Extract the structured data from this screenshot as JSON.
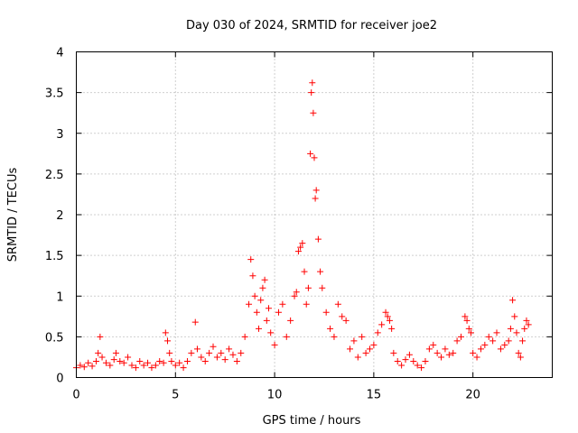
{
  "chart_data": {
    "type": "scatter",
    "title": "Day 030 of 2024, SRMTID for receiver joe2",
    "xlabel": "GPS time / hours",
    "ylabel": "SRMTID / TECUs",
    "xlim": [
      0,
      24
    ],
    "ylim": [
      0,
      4
    ],
    "xticks": [
      0,
      5,
      10,
      15,
      20
    ],
    "yticks": [
      0,
      0.5,
      1,
      1.5,
      2,
      2.5,
      3,
      3.5,
      4
    ],
    "grid": true,
    "marker": "+",
    "color": "#ff0000",
    "series": [
      {
        "name": "joe2",
        "x": [
          0.0,
          0.2,
          0.4,
          0.6,
          0.8,
          1.0,
          1.1,
          1.2,
          1.3,
          1.5,
          1.7,
          1.9,
          2.0,
          2.2,
          2.4,
          2.6,
          2.8,
          3.0,
          3.2,
          3.4,
          3.6,
          3.8,
          4.0,
          4.2,
          4.4,
          4.5,
          4.6,
          4.7,
          4.8,
          5.0,
          5.2,
          5.4,
          5.6,
          5.8,
          6.0,
          6.1,
          6.3,
          6.5,
          6.7,
          6.9,
          7.1,
          7.3,
          7.5,
          7.7,
          7.9,
          8.1,
          8.3,
          8.5,
          8.7,
          8.8,
          8.9,
          9.0,
          9.1,
          9.2,
          9.3,
          9.4,
          9.5,
          9.6,
          9.7,
          9.8,
          10.0,
          10.2,
          10.4,
          10.6,
          10.8,
          11.0,
          11.1,
          11.2,
          11.3,
          11.4,
          11.5,
          11.6,
          11.7,
          11.8,
          11.85,
          11.9,
          11.95,
          12.0,
          12.05,
          12.1,
          12.2,
          12.3,
          12.4,
          12.6,
          12.8,
          13.0,
          13.2,
          13.4,
          13.6,
          13.8,
          14.0,
          14.2,
          14.4,
          14.6,
          14.8,
          15.0,
          15.2,
          15.4,
          15.6,
          15.7,
          15.8,
          15.9,
          16.0,
          16.2,
          16.4,
          16.6,
          16.8,
          17.0,
          17.2,
          17.4,
          17.6,
          17.8,
          18.0,
          18.2,
          18.4,
          18.6,
          18.8,
          19.0,
          19.2,
          19.4,
          19.6,
          19.7,
          19.8,
          19.9,
          20.0,
          20.2,
          20.4,
          20.6,
          20.8,
          21.0,
          21.2,
          21.4,
          21.6,
          21.8,
          21.9,
          22.0,
          22.1,
          22.2,
          22.3,
          22.4,
          22.5,
          22.6,
          22.7,
          22.8
        ],
        "y": [
          0.12,
          0.15,
          0.13,
          0.18,
          0.14,
          0.2,
          0.3,
          0.5,
          0.25,
          0.18,
          0.15,
          0.22,
          0.3,
          0.2,
          0.18,
          0.25,
          0.15,
          0.12,
          0.2,
          0.15,
          0.18,
          0.12,
          0.15,
          0.2,
          0.18,
          0.55,
          0.45,
          0.3,
          0.2,
          0.15,
          0.18,
          0.12,
          0.2,
          0.3,
          0.68,
          0.35,
          0.25,
          0.2,
          0.3,
          0.38,
          0.25,
          0.3,
          0.22,
          0.35,
          0.28,
          0.2,
          0.3,
          0.5,
          0.9,
          1.45,
          1.25,
          1.0,
          0.8,
          0.6,
          0.95,
          1.1,
          1.2,
          0.7,
          0.85,
          0.55,
          0.4,
          0.8,
          0.9,
          0.5,
          0.7,
          1.0,
          1.05,
          1.55,
          1.6,
          1.65,
          1.3,
          0.9,
          1.1,
          2.75,
          3.5,
          3.62,
          3.25,
          2.7,
          2.2,
          2.3,
          1.7,
          1.3,
          1.1,
          0.8,
          0.6,
          0.5,
          0.9,
          0.75,
          0.7,
          0.35,
          0.45,
          0.25,
          0.5,
          0.3,
          0.35,
          0.4,
          0.55,
          0.65,
          0.8,
          0.75,
          0.7,
          0.6,
          0.3,
          0.2,
          0.15,
          0.22,
          0.28,
          0.2,
          0.15,
          0.12,
          0.2,
          0.35,
          0.4,
          0.3,
          0.25,
          0.35,
          0.28,
          0.3,
          0.45,
          0.5,
          0.75,
          0.7,
          0.6,
          0.55,
          0.3,
          0.25,
          0.35,
          0.4,
          0.5,
          0.45,
          0.55,
          0.35,
          0.4,
          0.45,
          0.6,
          0.95,
          0.75,
          0.55,
          0.3,
          0.25,
          0.45,
          0.6,
          0.7,
          0.65
        ]
      }
    ]
  }
}
